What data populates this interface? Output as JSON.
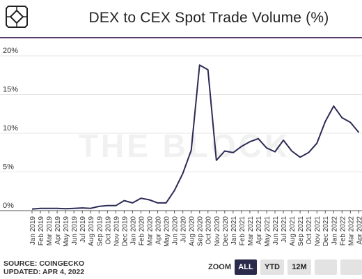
{
  "header": {
    "title": "DEX to CEX Spot Trade Volume (%)"
  },
  "footer": {
    "source": "SOURCE: COINGECKO",
    "updated": "UPDATED: APR 4, 2022"
  },
  "zoom": {
    "label": "ZOOM",
    "buttons": [
      {
        "label": "ALL",
        "active": true
      },
      {
        "label": "YTD",
        "active": false
      },
      {
        "label": "12M",
        "active": false
      },
      {
        "label": "",
        "active": false
      },
      {
        "label": "",
        "active": false
      },
      {
        "label": "",
        "active": false
      }
    ]
  },
  "watermark": "THE BLOCK",
  "colors": {
    "line": "#2b2b55",
    "accent": "#5a3d6e"
  },
  "chart_data": {
    "type": "line",
    "title": "DEX to CEX Spot Trade Volume (%)",
    "xlabel": "",
    "ylabel": "",
    "ylim": [
      0,
      20
    ],
    "yticks": [
      0,
      5,
      10,
      15,
      20
    ],
    "ytick_labels": [
      "0%",
      "5%",
      "10%",
      "15%",
      "20%"
    ],
    "grid": true,
    "categories": [
      "Jan 2019",
      "Feb 2019",
      "Mar 2019",
      "Apr 2019",
      "May 2019",
      "Jun 2019",
      "Jul 2019",
      "Aug 2019",
      "Sep 2019",
      "Oct 2019",
      "Nov 2019",
      "Dec 2019",
      "Jan 2020",
      "Feb 2020",
      "Mar 2020",
      "Apr 2020",
      "May 2020",
      "Jun 2020",
      "Jul 2020",
      "Aug 2020",
      "Sep 2020",
      "Oct 2020",
      "Nov 2020",
      "Dec 2020",
      "Jan 2021",
      "Feb 2021",
      "Mar 2021",
      "Apr 2021",
      "May 2021",
      "Jun 2021",
      "Jul 2021",
      "Aug 2021",
      "Sep 2021",
      "Oct 2021",
      "Nov 2021",
      "Dec 2021",
      "Jan 2022",
      "Feb 2022",
      "Mar 2022",
      "Apr 2022"
    ],
    "series": [
      {
        "values": [
          0.2,
          0.3,
          0.3,
          0.3,
          0.25,
          0.3,
          0.35,
          0.3,
          0.55,
          0.65,
          0.65,
          1.3,
          1.0,
          1.6,
          1.4,
          1.0,
          1.0,
          2.6,
          4.8,
          7.8,
          18.8,
          18.2,
          6.5,
          7.7,
          7.5,
          8.3,
          8.9,
          9.3,
          8.1,
          7.6,
          9.1,
          7.7,
          6.9,
          7.5,
          8.7,
          11.5,
          13.5,
          12.0,
          11.4,
          10.1
        ]
      }
    ]
  }
}
